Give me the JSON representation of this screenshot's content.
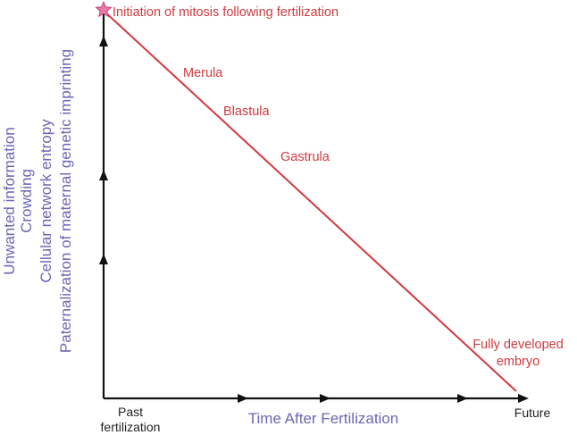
{
  "y_axis_labels": [
    "Unwanted information",
    "Crowding",
    "Cellular network entropy",
    "Paternalization of maternal genetic imprinting"
  ],
  "x_axis": {
    "title": "Time After Fertilization",
    "start_label": [
      "Past",
      "fertilization"
    ],
    "end_label": "Future"
  },
  "events": {
    "start": "Initiation of mitosis following fertilization",
    "stages": [
      "Merula",
      "Blastula",
      "Gastrula"
    ],
    "end": [
      "Fully developed",
      "embryo"
    ]
  },
  "colors": {
    "axis": "#111111",
    "trend_line": "#d03a3f",
    "axis_text": "#6b66b5",
    "stage_text": "#d03a3f",
    "star": "#e879a8"
  }
}
